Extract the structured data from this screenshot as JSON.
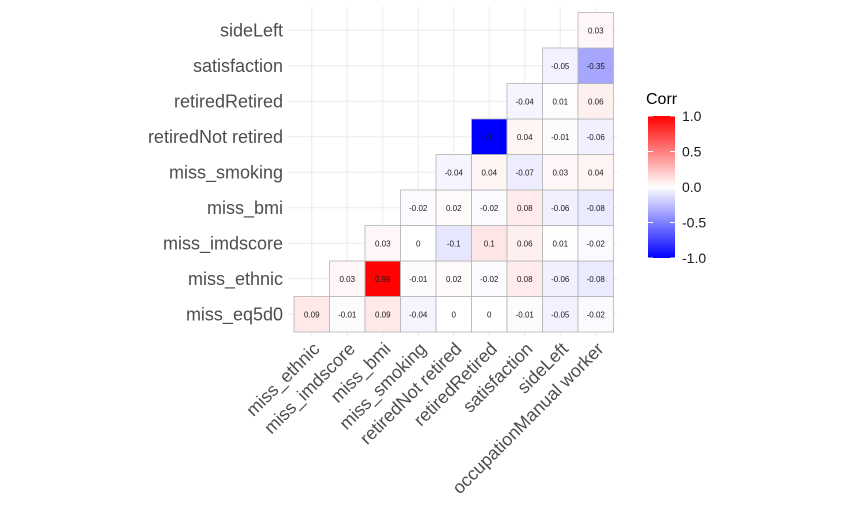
{
  "chart_data": {
    "type": "heatmap",
    "x_labels": [
      "miss_ethnic",
      "miss_imdscore",
      "miss_bmi",
      "miss_smoking",
      "retiredNot retired",
      "retiredRetired",
      "satisfaction",
      "sideLeft",
      "occupationManual worker"
    ],
    "y_labels": [
      "miss_eq5d0",
      "miss_ethnic",
      "miss_imdscore",
      "miss_bmi",
      "miss_smoking",
      "retiredNot retired",
      "retiredRetired",
      "satisfaction",
      "sideLeft"
    ],
    "cells": [
      {
        "row": 0,
        "col": 0,
        "value": 0.09,
        "label": "0.09"
      },
      {
        "row": 0,
        "col": 1,
        "value": -0.01,
        "label": "-0.01"
      },
      {
        "row": 0,
        "col": 2,
        "value": 0.09,
        "label": "0.09"
      },
      {
        "row": 0,
        "col": 3,
        "value": -0.04,
        "label": "-0.04"
      },
      {
        "row": 0,
        "col": 4,
        "value": 0,
        "label": "0"
      },
      {
        "row": 0,
        "col": 5,
        "value": 0,
        "label": "0"
      },
      {
        "row": 0,
        "col": 6,
        "value": -0.01,
        "label": "-0.01"
      },
      {
        "row": 0,
        "col": 7,
        "value": -0.05,
        "label": "-0.05"
      },
      {
        "row": 0,
        "col": 8,
        "value": -0.02,
        "label": "-0.02"
      },
      {
        "row": 1,
        "col": 1,
        "value": 0.03,
        "label": "0.03"
      },
      {
        "row": 1,
        "col": 2,
        "value": 0.99,
        "label": "0.99"
      },
      {
        "row": 1,
        "col": 3,
        "value": -0.01,
        "label": "-0.01"
      },
      {
        "row": 1,
        "col": 4,
        "value": 0.02,
        "label": "0.02"
      },
      {
        "row": 1,
        "col": 5,
        "value": -0.02,
        "label": "-0.02"
      },
      {
        "row": 1,
        "col": 6,
        "value": 0.08,
        "label": "0.08"
      },
      {
        "row": 1,
        "col": 7,
        "value": -0.06,
        "label": "-0.06"
      },
      {
        "row": 1,
        "col": 8,
        "value": -0.08,
        "label": "-0.08"
      },
      {
        "row": 2,
        "col": 2,
        "value": 0.03,
        "label": "0.03"
      },
      {
        "row": 2,
        "col": 3,
        "value": 0,
        "label": "0"
      },
      {
        "row": 2,
        "col": 4,
        "value": -0.1,
        "label": "-0.1"
      },
      {
        "row": 2,
        "col": 5,
        "value": 0.1,
        "label": "0.1"
      },
      {
        "row": 2,
        "col": 6,
        "value": 0.06,
        "label": "0.06"
      },
      {
        "row": 2,
        "col": 7,
        "value": 0.01,
        "label": "0.01"
      },
      {
        "row": 2,
        "col": 8,
        "value": -0.02,
        "label": "-0.02"
      },
      {
        "row": 3,
        "col": 3,
        "value": -0.02,
        "label": "-0.02"
      },
      {
        "row": 3,
        "col": 4,
        "value": 0.02,
        "label": "0.02"
      },
      {
        "row": 3,
        "col": 5,
        "value": -0.02,
        "label": "-0.02"
      },
      {
        "row": 3,
        "col": 6,
        "value": 0.08,
        "label": "0.08"
      },
      {
        "row": 3,
        "col": 7,
        "value": -0.06,
        "label": "-0.06"
      },
      {
        "row": 3,
        "col": 8,
        "value": -0.08,
        "label": "-0.08"
      },
      {
        "row": 4,
        "col": 4,
        "value": -0.04,
        "label": "-0.04"
      },
      {
        "row": 4,
        "col": 5,
        "value": 0.04,
        "label": "0.04"
      },
      {
        "row": 4,
        "col": 6,
        "value": -0.07,
        "label": "-0.07"
      },
      {
        "row": 4,
        "col": 7,
        "value": 0.03,
        "label": "0.03"
      },
      {
        "row": 4,
        "col": 8,
        "value": 0.04,
        "label": "0.04"
      },
      {
        "row": 5,
        "col": 5,
        "value": -1,
        "label": "-1"
      },
      {
        "row": 5,
        "col": 6,
        "value": 0.04,
        "label": "0.04"
      },
      {
        "row": 5,
        "col": 7,
        "value": -0.01,
        "label": "-0.01"
      },
      {
        "row": 5,
        "col": 8,
        "value": -0.06,
        "label": "-0.06"
      },
      {
        "row": 6,
        "col": 6,
        "value": -0.04,
        "label": "-0.04"
      },
      {
        "row": 6,
        "col": 7,
        "value": 0.01,
        "label": "0.01"
      },
      {
        "row": 6,
        "col": 8,
        "value": 0.06,
        "label": "0.06"
      },
      {
        "row": 7,
        "col": 7,
        "value": -0.05,
        "label": "-0.05"
      },
      {
        "row": 7,
        "col": 8,
        "value": -0.35,
        "label": "-0.35"
      },
      {
        "row": 8,
        "col": 8,
        "value": 0.03,
        "label": "0.03"
      }
    ],
    "legend": {
      "title": "Corr",
      "ticks": [
        1.0,
        0.5,
        0.0,
        -0.5,
        -1.0
      ],
      "tick_labels": [
        "1.0",
        "0.5",
        "0.0",
        "-0.5",
        "-1.0"
      ],
      "colors": {
        "low": "#0000ff",
        "mid": "#ffffff",
        "high": "#ff0000"
      },
      "position": "right"
    },
    "grid": true,
    "xlim": [
      -1,
      1
    ]
  }
}
